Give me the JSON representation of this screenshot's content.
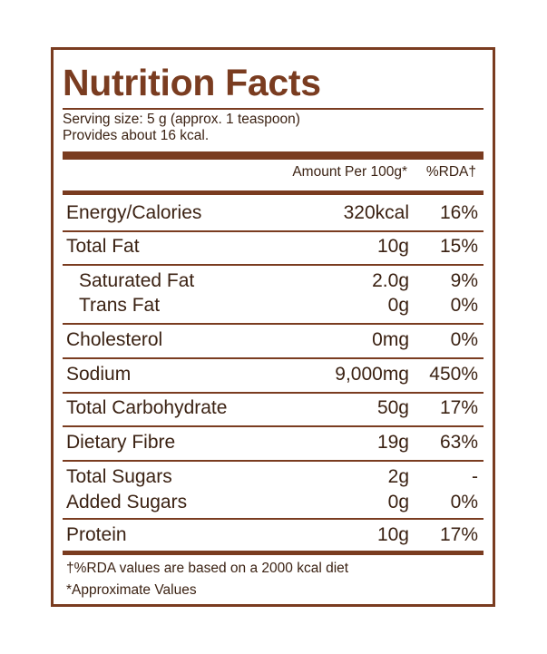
{
  "title": "Nutrition Facts",
  "serving": {
    "size": "Serving size: 5 g (approx. 1 teaspoon)",
    "provides": "Provides about 16 kcal."
  },
  "header": {
    "amount": "Amount Per 100g*",
    "rda": "%RDA†"
  },
  "rows": [
    {
      "name": "Energy/Calories",
      "amount": "320kcal",
      "rda": "16%"
    },
    {
      "name": "Total Fat",
      "amount": "10g",
      "rda": "15%"
    },
    {
      "name": "Saturated Fat",
      "amount": "2.0g",
      "rda": "9%"
    },
    {
      "name": "Trans Fat",
      "amount": "0g",
      "rda": "0%"
    },
    {
      "name": "Cholesterol",
      "amount": "0mg",
      "rda": "0%"
    },
    {
      "name": "Sodium",
      "amount": "9,000mg",
      "rda": "450%"
    },
    {
      "name": "Total Carbohydrate",
      "amount": "50g",
      "rda": "17%"
    },
    {
      "name": "Dietary Fibre",
      "amount": "19g",
      "rda": "63%"
    },
    {
      "name": "Total Sugars",
      "amount": "2g",
      "rda": "-"
    },
    {
      "name": "Added Sugars",
      "amount": "0g",
      "rda": "0%"
    },
    {
      "name": "Protein",
      "amount": "10g",
      "rda": "17%"
    }
  ],
  "footnotes": {
    "rda_note": "†%RDA values are based on a 2000 kcal diet",
    "approx_note": "*Approximate Values"
  },
  "colors": {
    "accent": "#7a3c20",
    "text": "#3b2213"
  }
}
